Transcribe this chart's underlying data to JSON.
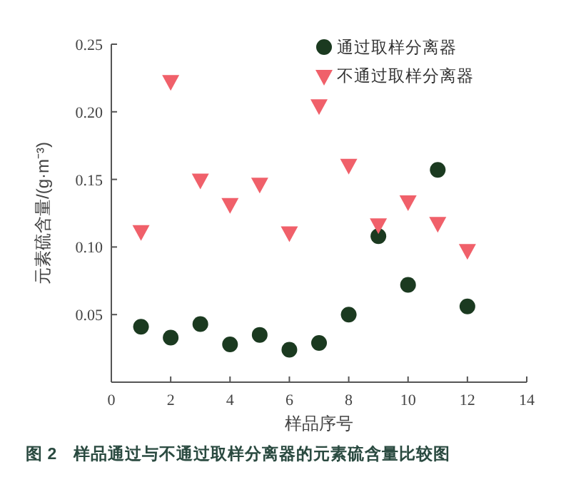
{
  "chart_data": {
    "type": "scatter",
    "xlabel": "样品序号",
    "ylabel": "元素硫含量/(g·m⁻³)",
    "annotations": [
      "图 2　样品通过与不通过取样分离器的元素硫含量比较图"
    ],
    "x": [
      1,
      2,
      3,
      4,
      5,
      6,
      7,
      8,
      9,
      10,
      11,
      12
    ],
    "series": [
      {
        "name": "通过取样分离器",
        "color": "#1b3a20",
        "marker": "circle",
        "values": [
          0.041,
          0.033,
          0.043,
          0.028,
          0.035,
          0.024,
          0.029,
          0.05,
          0.108,
          0.072,
          0.157,
          0.056
        ]
      },
      {
        "name": "不通过取样分离器",
        "color": "#f0606a",
        "marker": "triangle",
        "values": [
          0.112,
          0.223,
          0.15,
          0.132,
          0.147,
          0.111,
          0.205,
          0.161,
          0.117,
          0.134,
          0.118,
          0.098
        ]
      }
    ],
    "xlim": [
      0,
      14
    ],
    "xticks": [
      0,
      2,
      4,
      6,
      8,
      10,
      12,
      14
    ],
    "ylim": [
      0,
      0.25
    ],
    "yticks": [
      0.05,
      {
        "value": 0.1,
        "label": "0.10"
      },
      0.15,
      {
        "value": 0.2,
        "label": "0.20"
      },
      0.25
    ],
    "legend": "top right",
    "grid": false
  }
}
